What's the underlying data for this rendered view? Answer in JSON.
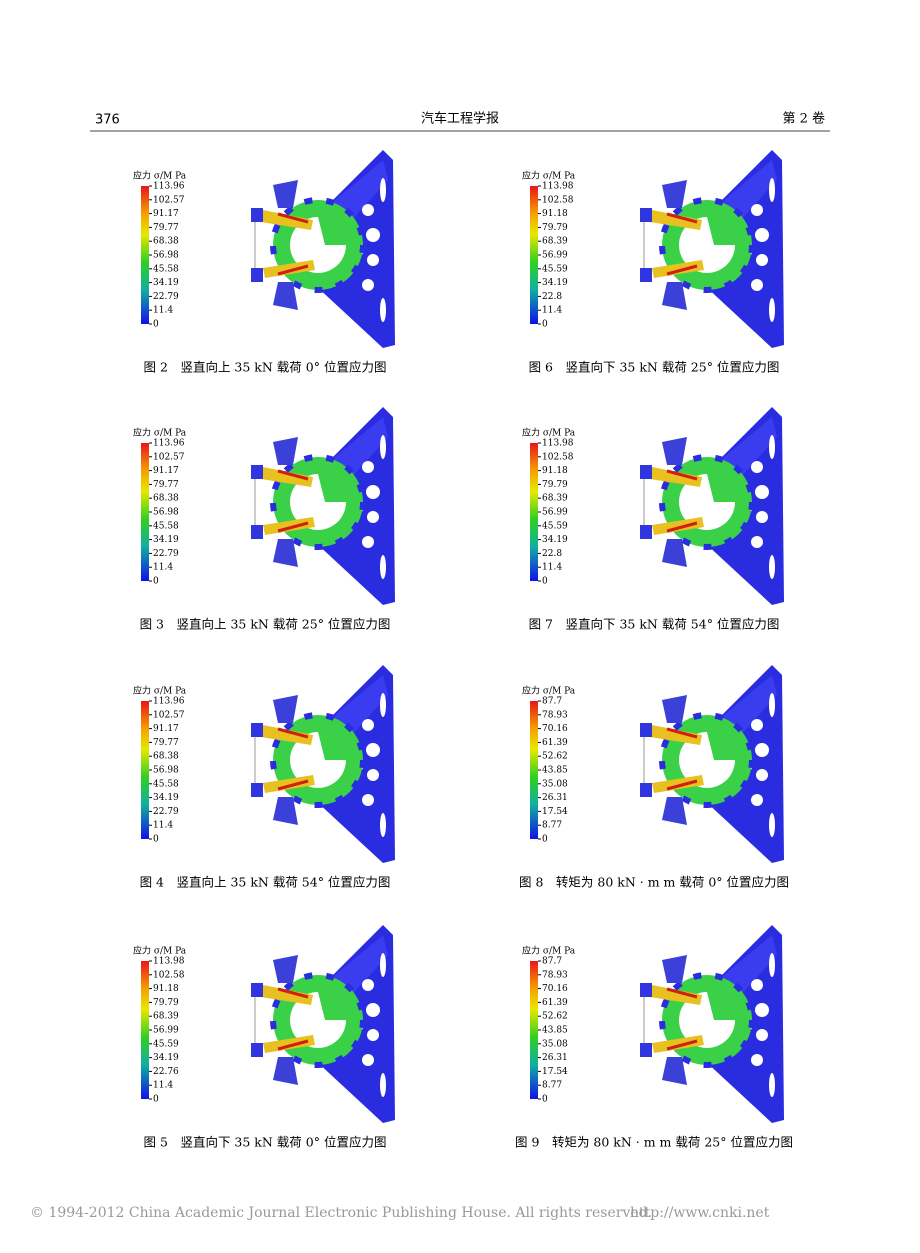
{
  "header": {
    "page_number": "376",
    "journal": "汽车工程学报",
    "volume": "第 2 卷"
  },
  "figures": [
    {
      "legend_title": "应力 σ/M Pa",
      "ticks": [
        "113.96",
        "102.57",
        "91.17",
        "79.77",
        "68.38",
        "56.98",
        "45.58",
        "34.19",
        "22.79",
        "11.4",
        "0"
      ],
      "caption": "图 2　竖直向上 35 kN 载荷 0° 位置应力图"
    },
    {
      "legend_title": "应力 σ/M Pa",
      "ticks": [
        "113.98",
        "102.58",
        "91.18",
        "79.79",
        "68.39",
        "56.99",
        "45.59",
        "34.19",
        "22.8",
        "11.4",
        "0"
      ],
      "caption": "图 6　竖直向下 35 kN 载荷 25° 位置应力图"
    },
    {
      "legend_title": "应力 σ/M Pa",
      "ticks": [
        "113.96",
        "102.57",
        "91.17",
        "79.77",
        "68.38",
        "56.98",
        "45.58",
        "34.19",
        "22.79",
        "11.4",
        "0"
      ],
      "caption": "图 3　竖直向上 35 kN 载荷 25° 位置应力图"
    },
    {
      "legend_title": "应力 σ/M Pa",
      "ticks": [
        "113.98",
        "102.58",
        "91.18",
        "79.79",
        "68.39",
        "56.99",
        "45.59",
        "34.19",
        "22.8",
        "11.4",
        "0"
      ],
      "caption": "图 7　竖直向下 35 kN 载荷 54° 位置应力图"
    },
    {
      "legend_title": "应力 σ/M Pa",
      "ticks": [
        "113.96",
        "102.57",
        "91.17",
        "79.77",
        "68.38",
        "56.98",
        "45.58",
        "34.19",
        "22.79",
        "11.4",
        "0"
      ],
      "caption": "图 4　竖直向上 35 kN 载荷 54° 位置应力图"
    },
    {
      "legend_title": "应力 σ/M Pa",
      "ticks": [
        "87.7",
        "78.93",
        "70.16",
        "61.39",
        "52.62",
        "43.85",
        "35.08",
        "26.31",
        "17.54",
        "8.77",
        "0"
      ],
      "caption": "图 8　转矩为 80 kN · m m 载荷 0° 位置应力图"
    },
    {
      "legend_title": "应力 σ/M Pa",
      "ticks": [
        "113.98",
        "102.58",
        "91.18",
        "79.79",
        "68.39",
        "56.99",
        "45.59",
        "34.19",
        "22.76",
        "11.4",
        "0"
      ],
      "caption": "图 5　竖直向下 35 kN 载荷 0° 位置应力图"
    },
    {
      "legend_title": "应力 σ/M Pa",
      "ticks": [
        "87.7",
        "78.93",
        "70.16",
        "61.39",
        "52.62",
        "43.85",
        "35.08",
        "26.31",
        "17.54",
        "8.77",
        "0"
      ],
      "caption": "图 9　转矩为 80 kN · m m 载荷 25° 位置应力图"
    }
  ],
  "footer": {
    "copyright": "© 1994-2012 China Academic Journal Electronic Publishing House. All rights reserved.",
    "url": "http://www.cnki.net"
  }
}
